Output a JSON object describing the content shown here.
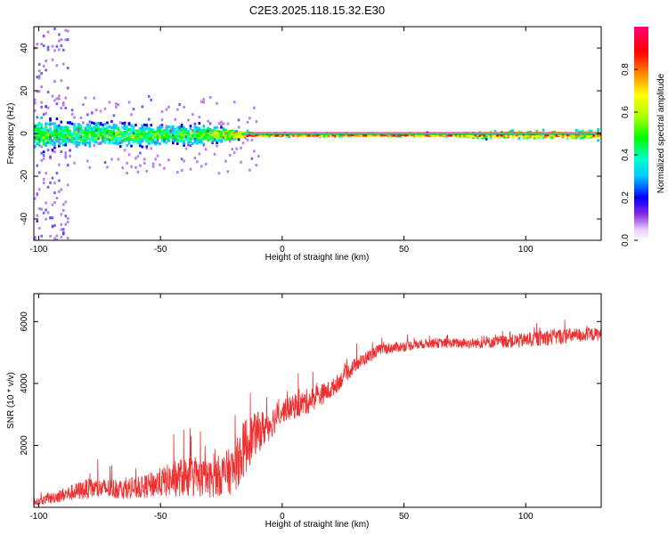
{
  "chart_data": [
    {
      "type": "heatmap",
      "title": "C2E3.2025.118.15.32.E30",
      "xlabel": "Height of straight line (km)",
      "ylabel": "Frequency (Hz)",
      "xlim": [
        -102,
        131
      ],
      "ylim": [
        -50,
        50
      ],
      "x_ticks": [
        -100,
        -50,
        0,
        50,
        100
      ],
      "y_ticks": [
        -40,
        -20,
        0,
        20,
        40
      ],
      "colorbar": {
        "label": "Normalized spectral amplitude",
        "range": [
          0,
          1
        ],
        "ticks": [
          "0.0",
          "0.2",
          "0.4",
          "0.6",
          "0.8"
        ]
      },
      "band_envelope": [
        {
          "x": -100,
          "halfwidth_hz": 10,
          "peak": 0.55
        },
        {
          "x": -90,
          "halfwidth_hz": 8,
          "peak": 0.5
        },
        {
          "x": -70,
          "halfwidth_hz": 7,
          "peak": 0.55
        },
        {
          "x": -50,
          "halfwidth_hz": 6,
          "peak": 0.55
        },
        {
          "x": -30,
          "halfwidth_hz": 5,
          "peak": 0.6
        },
        {
          "x": -15,
          "halfwidth_hz": 2,
          "peak": 0.9
        },
        {
          "x": -12,
          "halfwidth_hz": 1,
          "peak": 1.0
        },
        {
          "x": 70,
          "halfwidth_hz": 1,
          "peak": 1.0
        },
        {
          "x": 80,
          "halfwidth_hz": 2,
          "peak": 0.9
        },
        {
          "x": 131,
          "halfwidth_hz": 3,
          "peak": 0.9
        }
      ]
    },
    {
      "type": "line",
      "xlabel": "Height of straight line (km)",
      "ylabel": "SNR (10 * v/v)",
      "xlim": [
        -102,
        131
      ],
      "ylim": [
        0,
        6900
      ],
      "x_ticks": [
        -100,
        -50,
        0,
        50,
        100
      ],
      "y_ticks": [
        2000,
        4000,
        6000
      ],
      "series_color": "#ee3030",
      "trend": [
        {
          "x": -102,
          "y": 150,
          "noise": 150
        },
        {
          "x": -95,
          "y": 300,
          "noise": 300
        },
        {
          "x": -80,
          "y": 600,
          "noise": 550
        },
        {
          "x": -60,
          "y": 600,
          "noise": 550
        },
        {
          "x": -50,
          "y": 800,
          "noise": 800
        },
        {
          "x": -40,
          "y": 1000,
          "noise": 1100
        },
        {
          "x": -30,
          "y": 900,
          "noise": 1000
        },
        {
          "x": -20,
          "y": 1200,
          "noise": 1300
        },
        {
          "x": -15,
          "y": 2000,
          "noise": 1600
        },
        {
          "x": -12,
          "y": 2300,
          "noise": 1200
        },
        {
          "x": -5,
          "y": 2700,
          "noise": 900
        },
        {
          "x": 0,
          "y": 3100,
          "noise": 600
        },
        {
          "x": 10,
          "y": 3400,
          "noise": 700
        },
        {
          "x": 20,
          "y": 3800,
          "noise": 500
        },
        {
          "x": 30,
          "y": 4600,
          "noise": 400
        },
        {
          "x": 40,
          "y": 5100,
          "noise": 300
        },
        {
          "x": 60,
          "y": 5300,
          "noise": 250
        },
        {
          "x": 80,
          "y": 5300,
          "noise": 280
        },
        {
          "x": 100,
          "y": 5400,
          "noise": 400
        },
        {
          "x": 110,
          "y": 5500,
          "noise": 450
        },
        {
          "x": 131,
          "y": 5600,
          "noise": 350
        }
      ]
    }
  ]
}
